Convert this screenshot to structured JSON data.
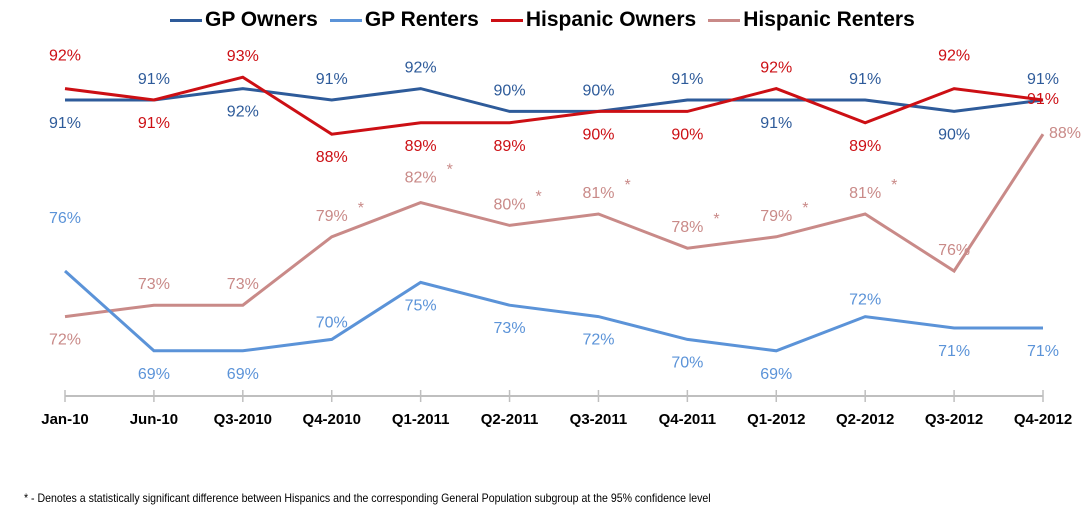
{
  "chart_data": {
    "type": "line",
    "title": "",
    "xlabel": "",
    "ylabel": "",
    "ylim": [
      60,
      100
    ],
    "grid": false,
    "legend_position": "top",
    "categories": [
      "Jan-10",
      "Jun-10",
      "Q3-2010",
      "Q4-2010",
      "Q1-2011",
      "Q2-2011",
      "Q3-2011",
      "Q4-2011",
      "Q1-2012",
      "Q2-2012",
      "Q3-2012",
      "Q4-2012"
    ],
    "series": [
      {
        "name": "GP Owners",
        "color": "#2e5b9a",
        "values": [
          91,
          91,
          92,
          91,
          92,
          90,
          90,
          91,
          91,
          91,
          90,
          91
        ],
        "labels": [
          "91%",
          "91%",
          "92%",
          "91%",
          "92%",
          "90%",
          "90%",
          "91%",
          "91%",
          "91%",
          "90%",
          "91%"
        ],
        "significant": [
          false,
          false,
          false,
          false,
          false,
          false,
          false,
          false,
          false,
          false,
          false,
          false
        ]
      },
      {
        "name": "GP Renters",
        "color": "#5b93d8",
        "values": [
          76,
          69,
          69,
          70,
          75,
          73,
          72,
          70,
          69,
          72,
          71,
          71
        ],
        "labels": [
          "76%",
          "69%",
          "69%",
          "70%",
          "75%",
          "73%",
          "72%",
          "70%",
          "69%",
          "72%",
          "71%",
          "71%"
        ],
        "significant": [
          false,
          false,
          false,
          false,
          false,
          false,
          false,
          false,
          false,
          false,
          false,
          false
        ]
      },
      {
        "name": "Hispanic Owners",
        "color": "#cc0f14",
        "values": [
          92,
          91,
          93,
          88,
          89,
          89,
          90,
          90,
          92,
          89,
          92,
          91
        ],
        "labels": [
          "92%",
          "91%",
          "93%",
          "88%",
          "89%",
          "89%",
          "90%",
          "90%",
          "92%",
          "89%",
          "92%",
          "91%"
        ],
        "significant": [
          false,
          false,
          false,
          false,
          false,
          false,
          false,
          false,
          false,
          false,
          false,
          false
        ]
      },
      {
        "name": "Hispanic Renters",
        "color": "#c98a88",
        "values": [
          72,
          73,
          73,
          79,
          82,
          80,
          81,
          78,
          79,
          81,
          76,
          88
        ],
        "labels": [
          "72%",
          "73%",
          "73%",
          "79%",
          "82%",
          "80%",
          "81%",
          "78%",
          "79%",
          "81%",
          "76%",
          "88%"
        ],
        "significant": [
          false,
          false,
          false,
          true,
          true,
          true,
          true,
          true,
          true,
          true,
          false,
          true
        ]
      }
    ],
    "significance_marker": "*",
    "footnote": "* - Denotes a statistically significant difference between Hispanics and the corresponding General Population subgroup at the 95% confidence level"
  }
}
